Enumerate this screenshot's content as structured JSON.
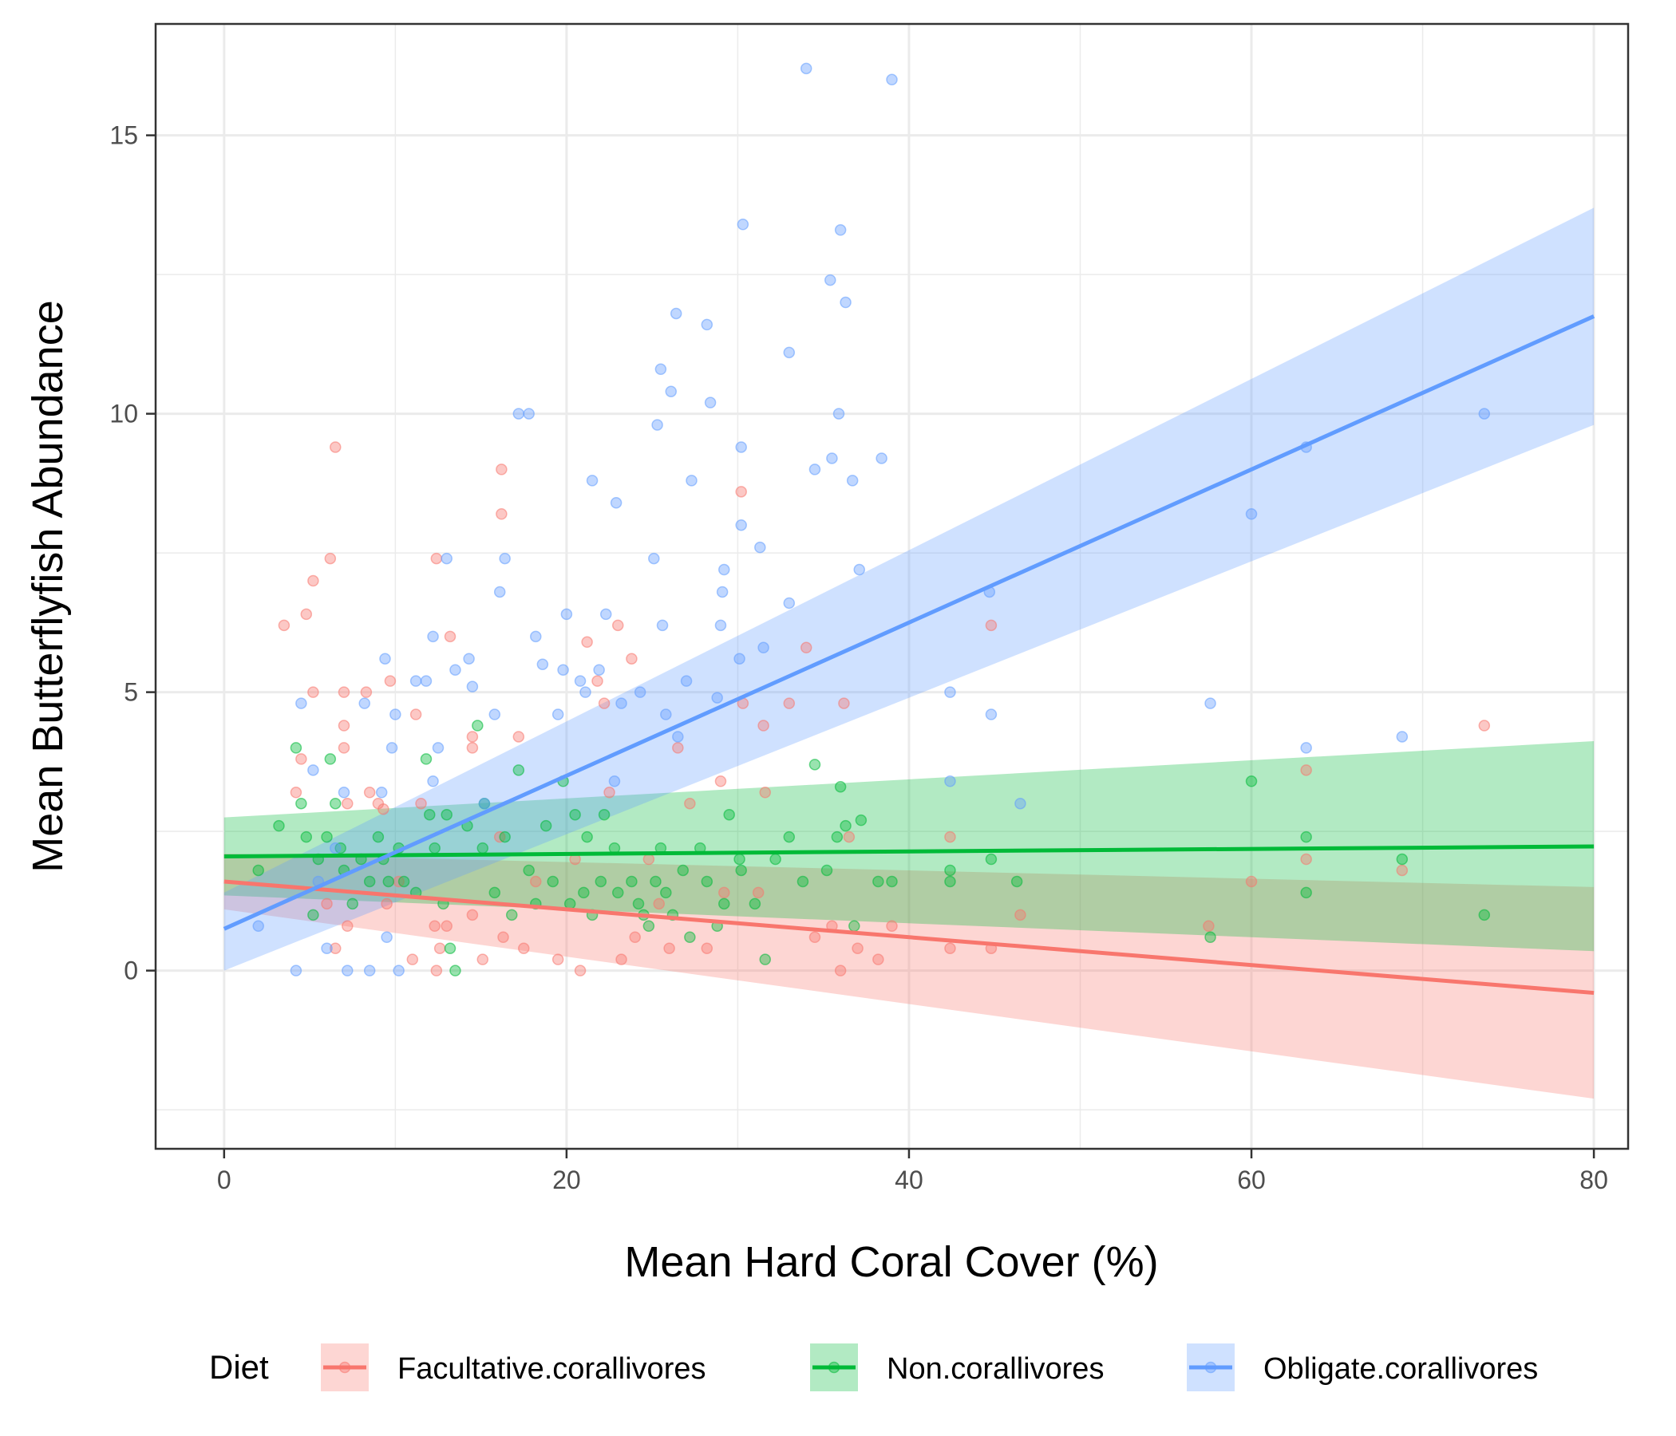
{
  "chart_data": {
    "type": "scatter",
    "title": "",
    "xlabel": "Mean Hard Coral Cover (%)",
    "ylabel": "Mean Butterflyfish Abundance",
    "xlim": [
      -4,
      82
    ],
    "ylim": [
      -3.2,
      17.0
    ],
    "x_ticks": [
      0,
      20,
      40,
      60,
      80
    ],
    "y_ticks": [
      0,
      5,
      10,
      15
    ],
    "grid": true,
    "legend": {
      "title": "Diet",
      "position": "bottom",
      "entries": [
        "Facultative.corallivores",
        "Non.corallivores",
        "Obligate.corallivores"
      ]
    },
    "series": [
      {
        "name": "Facultative.corallivores",
        "color": "#F8766D",
        "fit": {
          "x0": 0,
          "x1": 80,
          "y0": 1.6,
          "y1": -0.4,
          "lo0": 1.1,
          "hi0": 2.1,
          "lo1": -2.3,
          "hi1": 1.5
        },
        "points": [
          [
            3.5,
            6.2
          ],
          [
            4.8,
            6.4
          ],
          [
            5.2,
            7.0
          ],
          [
            6.2,
            7.4
          ],
          [
            6.5,
            9.4
          ],
          [
            5.2,
            5.0
          ],
          [
            7.0,
            5.0
          ],
          [
            8.3,
            5.0
          ],
          [
            7.0,
            4.4
          ],
          [
            7.0,
            4.0
          ],
          [
            4.5,
            3.8
          ],
          [
            4.2,
            3.2
          ],
          [
            8.5,
            3.2
          ],
          [
            9.0,
            3.0
          ],
          [
            9.3,
            2.9
          ],
          [
            7.2,
            3.0
          ],
          [
            9.7,
            5.2
          ],
          [
            11.2,
            4.6
          ],
          [
            11.5,
            3.0
          ],
          [
            12.4,
            7.4
          ],
          [
            13.2,
            6.0
          ],
          [
            14.5,
            4.2
          ],
          [
            14.5,
            4.0
          ],
          [
            16.2,
            9.0
          ],
          [
            16.2,
            8.2
          ],
          [
            17.2,
            4.2
          ],
          [
            16.1,
            2.4
          ],
          [
            6.0,
            1.2
          ],
          [
            6.5,
            0.4
          ],
          [
            7.2,
            0.8
          ],
          [
            9.5,
            1.2
          ],
          [
            10.2,
            1.6
          ],
          [
            11.0,
            0.2
          ],
          [
            12.3,
            0.8
          ],
          [
            12.6,
            0.4
          ],
          [
            12.4,
            0.0
          ],
          [
            13.0,
            0.8
          ],
          [
            14.5,
            1.0
          ],
          [
            15.1,
            0.2
          ],
          [
            16.3,
            0.6
          ],
          [
            17.5,
            0.4
          ],
          [
            18.2,
            1.6
          ],
          [
            19.5,
            0.2
          ],
          [
            20.5,
            2.0
          ],
          [
            20.8,
            0.0
          ],
          [
            21.2,
            5.9
          ],
          [
            21.8,
            5.2
          ],
          [
            22.2,
            4.8
          ],
          [
            23.0,
            6.2
          ],
          [
            23.8,
            5.6
          ],
          [
            22.5,
            3.2
          ],
          [
            23.2,
            0.2
          ],
          [
            24.0,
            0.6
          ],
          [
            24.8,
            2.0
          ],
          [
            25.4,
            1.2
          ],
          [
            26.0,
            0.4
          ],
          [
            26.5,
            4.0
          ],
          [
            27.2,
            3.0
          ],
          [
            28.2,
            0.4
          ],
          [
            29.0,
            3.4
          ],
          [
            29.2,
            1.4
          ],
          [
            30.2,
            8.6
          ],
          [
            30.3,
            4.8
          ],
          [
            31.2,
            1.4
          ],
          [
            31.5,
            4.4
          ],
          [
            31.6,
            3.2
          ],
          [
            33.0,
            4.8
          ],
          [
            34.0,
            5.8
          ],
          [
            34.5,
            0.6
          ],
          [
            35.5,
            0.8
          ],
          [
            36.0,
            0.0
          ],
          [
            36.2,
            4.8
          ],
          [
            36.5,
            2.4
          ],
          [
            37.0,
            0.4
          ],
          [
            38.2,
            0.2
          ],
          [
            39.0,
            0.8
          ],
          [
            42.4,
            2.4
          ],
          [
            42.4,
            0.4
          ],
          [
            44.8,
            6.2
          ],
          [
            44.8,
            0.4
          ],
          [
            46.5,
            1.0
          ],
          [
            57.5,
            0.8
          ],
          [
            60.0,
            1.6
          ],
          [
            63.2,
            3.6
          ],
          [
            63.2,
            2.0
          ],
          [
            68.8,
            1.8
          ],
          [
            73.6,
            4.4
          ]
        ]
      },
      {
        "name": "Non.corallivores",
        "color": "#00BA38",
        "fit": {
          "x0": 0,
          "x1": 80,
          "y0": 2.05,
          "y1": 2.23,
          "lo0": 1.35,
          "hi0": 2.75,
          "lo1": 0.35,
          "hi1": 4.12
        },
        "points": [
          [
            2.0,
            1.8
          ],
          [
            3.2,
            2.6
          ],
          [
            4.2,
            4.0
          ],
          [
            4.5,
            3.0
          ],
          [
            4.8,
            2.4
          ],
          [
            5.2,
            1.0
          ],
          [
            5.5,
            2.0
          ],
          [
            6.0,
            2.4
          ],
          [
            6.2,
            3.8
          ],
          [
            6.5,
            3.0
          ],
          [
            6.8,
            2.2
          ],
          [
            7.0,
            1.8
          ],
          [
            7.5,
            1.2
          ],
          [
            8.0,
            2.0
          ],
          [
            8.5,
            1.6
          ],
          [
            9.0,
            2.4
          ],
          [
            9.3,
            2.0
          ],
          [
            9.6,
            1.6
          ],
          [
            10.2,
            2.2
          ],
          [
            10.5,
            1.6
          ],
          [
            11.2,
            1.4
          ],
          [
            11.8,
            3.8
          ],
          [
            12.0,
            2.8
          ],
          [
            12.3,
            2.2
          ],
          [
            12.8,
            1.2
          ],
          [
            13.0,
            2.8
          ],
          [
            13.2,
            0.4
          ],
          [
            13.5,
            0.0
          ],
          [
            14.2,
            2.6
          ],
          [
            14.8,
            4.4
          ],
          [
            15.1,
            2.2
          ],
          [
            15.2,
            3.0
          ],
          [
            15.8,
            1.4
          ],
          [
            16.4,
            2.4
          ],
          [
            16.8,
            1.0
          ],
          [
            17.2,
            3.6
          ],
          [
            17.8,
            1.8
          ],
          [
            18.2,
            1.2
          ],
          [
            18.8,
            2.6
          ],
          [
            19.2,
            1.6
          ],
          [
            19.8,
            3.4
          ],
          [
            20.2,
            1.2
          ],
          [
            20.5,
            2.8
          ],
          [
            21.0,
            1.4
          ],
          [
            21.2,
            2.4
          ],
          [
            21.5,
            1.0
          ],
          [
            22.0,
            1.6
          ],
          [
            22.2,
            2.8
          ],
          [
            22.8,
            2.2
          ],
          [
            23.0,
            1.4
          ],
          [
            23.8,
            1.6
          ],
          [
            24.2,
            1.2
          ],
          [
            24.5,
            1.0
          ],
          [
            24.8,
            0.8
          ],
          [
            25.2,
            1.6
          ],
          [
            25.5,
            2.2
          ],
          [
            25.8,
            1.4
          ],
          [
            26.2,
            1.0
          ],
          [
            26.8,
            1.8
          ],
          [
            27.2,
            0.6
          ],
          [
            27.8,
            2.2
          ],
          [
            28.2,
            1.6
          ],
          [
            28.8,
            0.8
          ],
          [
            29.2,
            1.2
          ],
          [
            29.5,
            2.8
          ],
          [
            30.1,
            2.0
          ],
          [
            30.2,
            1.8
          ],
          [
            31.0,
            1.2
          ],
          [
            31.6,
            0.2
          ],
          [
            32.2,
            2.0
          ],
          [
            33.0,
            2.4
          ],
          [
            33.8,
            1.6
          ],
          [
            34.5,
            3.7
          ],
          [
            35.2,
            1.8
          ],
          [
            35.8,
            2.4
          ],
          [
            36.0,
            3.3
          ],
          [
            36.3,
            2.6
          ],
          [
            36.8,
            0.8
          ],
          [
            37.2,
            2.7
          ],
          [
            38.2,
            1.6
          ],
          [
            39.0,
            1.6
          ],
          [
            42.4,
            1.8
          ],
          [
            42.4,
            1.6
          ],
          [
            44.8,
            2.0
          ],
          [
            46.3,
            1.6
          ],
          [
            57.6,
            0.6
          ],
          [
            60.0,
            3.4
          ],
          [
            63.2,
            2.4
          ],
          [
            63.2,
            1.4
          ],
          [
            68.8,
            2.0
          ],
          [
            73.6,
            1.0
          ]
        ]
      },
      {
        "name": "Obligate.corallivores",
        "color": "#619CFF",
        "fit": {
          "x0": 0,
          "x1": 80,
          "y0": 0.75,
          "y1": 11.75,
          "lo0": 0.0,
          "hi0": 1.4,
          "lo1": 9.8,
          "hi1": 13.7
        },
        "points": [
          [
            2.0,
            0.8
          ],
          [
            4.2,
            0.0
          ],
          [
            4.5,
            4.8
          ],
          [
            5.2,
            3.6
          ],
          [
            5.5,
            1.6
          ],
          [
            6.0,
            0.4
          ],
          [
            6.5,
            2.2
          ],
          [
            7.0,
            3.2
          ],
          [
            7.2,
            0.0
          ],
          [
            8.2,
            4.8
          ],
          [
            8.5,
            0.0
          ],
          [
            9.2,
            3.2
          ],
          [
            9.4,
            5.6
          ],
          [
            9.5,
            0.6
          ],
          [
            9.8,
            4.0
          ],
          [
            10.2,
            0.0
          ],
          [
            10.0,
            4.6
          ],
          [
            11.2,
            5.2
          ],
          [
            11.8,
            5.2
          ],
          [
            12.2,
            6.0
          ],
          [
            12.5,
            4.0
          ],
          [
            12.2,
            3.4
          ],
          [
            13.0,
            7.4
          ],
          [
            13.5,
            5.4
          ],
          [
            14.3,
            5.6
          ],
          [
            14.5,
            5.1
          ],
          [
            15.2,
            3.0
          ],
          [
            15.8,
            4.6
          ],
          [
            16.1,
            6.8
          ],
          [
            16.4,
            7.4
          ],
          [
            17.2,
            10.0
          ],
          [
            17.8,
            10.0
          ],
          [
            18.2,
            6.0
          ],
          [
            18.6,
            5.5
          ],
          [
            19.5,
            4.6
          ],
          [
            20.0,
            6.4
          ],
          [
            19.8,
            5.4
          ],
          [
            20.8,
            5.2
          ],
          [
            21.1,
            5.0
          ],
          [
            21.5,
            8.8
          ],
          [
            21.9,
            5.4
          ],
          [
            22.3,
            6.4
          ],
          [
            22.8,
            3.4
          ],
          [
            22.9,
            8.4
          ],
          [
            23.2,
            4.8
          ],
          [
            24.3,
            5.0
          ],
          [
            25.1,
            7.4
          ],
          [
            25.3,
            9.8
          ],
          [
            25.5,
            10.8
          ],
          [
            25.6,
            6.2
          ],
          [
            25.8,
            4.6
          ],
          [
            26.1,
            10.4
          ],
          [
            26.4,
            11.8
          ],
          [
            26.5,
            4.2
          ],
          [
            27.0,
            5.2
          ],
          [
            27.3,
            8.8
          ],
          [
            28.2,
            11.6
          ],
          [
            28.4,
            10.2
          ],
          [
            28.8,
            4.9
          ],
          [
            29.0,
            6.2
          ],
          [
            29.1,
            6.8
          ],
          [
            29.2,
            7.2
          ],
          [
            30.1,
            5.6
          ],
          [
            30.2,
            8.0
          ],
          [
            30.2,
            9.4
          ],
          [
            30.3,
            13.4
          ],
          [
            31.3,
            7.6
          ],
          [
            31.5,
            5.8
          ],
          [
            33.0,
            11.1
          ],
          [
            33.0,
            6.6
          ],
          [
            34.0,
            16.2
          ],
          [
            34.5,
            9.0
          ],
          [
            35.4,
            12.4
          ],
          [
            35.5,
            9.2
          ],
          [
            35.9,
            10.0
          ],
          [
            36.0,
            13.3
          ],
          [
            36.3,
            12.0
          ],
          [
            36.7,
            8.8
          ],
          [
            37.1,
            7.2
          ],
          [
            38.4,
            9.2
          ],
          [
            39.0,
            16.0
          ],
          [
            42.4,
            5.0
          ],
          [
            42.4,
            3.4
          ],
          [
            44.7,
            6.8
          ],
          [
            44.8,
            4.6
          ],
          [
            46.5,
            3.0
          ],
          [
            57.6,
            4.8
          ],
          [
            60.0,
            8.2
          ],
          [
            63.2,
            9.4
          ],
          [
            63.2,
            4.0
          ],
          [
            68.8,
            4.2
          ],
          [
            73.6,
            10.0
          ]
        ]
      }
    ]
  }
}
